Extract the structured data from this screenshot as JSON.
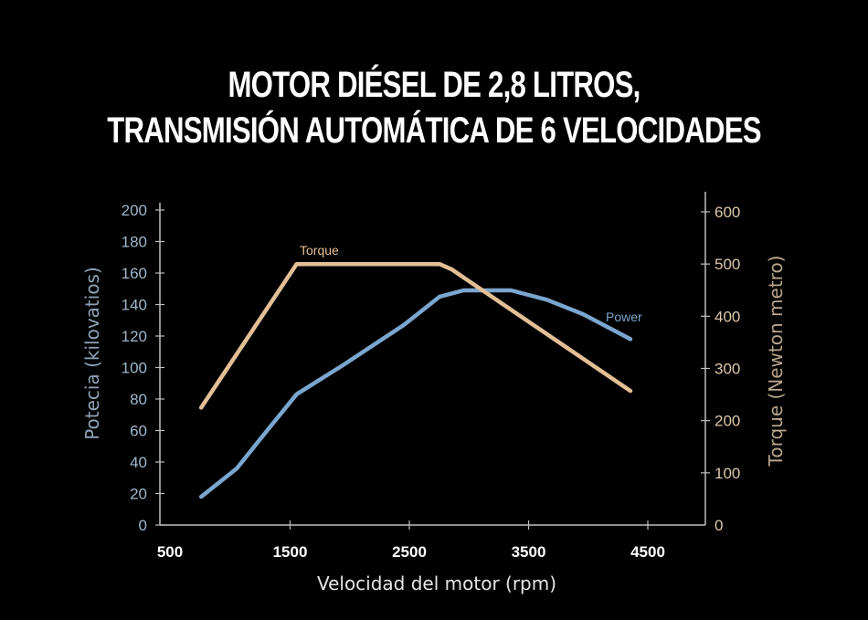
{
  "title": {
    "line1": "MOTOR DIÉSEL DE 2,8 LITROS,",
    "line2": "TRANSMISIÓN AUTOMÁTICA DE 6 VELOCIDADES"
  },
  "axes": {
    "xlabel": "Velocidad del motor (rpm)",
    "ylabel_left": "Potecia (kilovatios)",
    "ylabel_right": "Torque (Newton metro)",
    "xticks": [
      "500",
      "1500",
      "2500",
      "3500",
      "4500"
    ],
    "yticks_left": [
      "0",
      "20",
      "40",
      "60",
      "80",
      "100",
      "120",
      "140",
      "160",
      "180",
      "200"
    ],
    "yticks_right": [
      "0",
      "100",
      "200",
      "300",
      "400",
      "500",
      "600"
    ]
  },
  "colors": {
    "background": "#000000",
    "power": "#7aa6cf",
    "torque": "#e3bf95",
    "axis": "#bfbfbf"
  },
  "chart_data": {
    "type": "line",
    "title": "MOTOR DIÉSEL DE 2,8 LITROS, TRANSMISIÓN AUTOMÁTICA DE 6 VELOCIDADES",
    "xlabel": "Velocidad del motor (rpm)",
    "ylabel": "Potecia (kilovatios)",
    "ylabel_right": "Torque (Newton metro)",
    "xlim": [
      500,
      5000
    ],
    "ylim": [
      0,
      200
    ],
    "ylim_right": [
      0,
      600
    ],
    "xticks": [
      500,
      1500,
      2500,
      3500,
      4500
    ],
    "grid": false,
    "legend": "inline labels",
    "series": [
      {
        "name": "Power",
        "axis": "left",
        "unit": "kW",
        "x": [
          800,
          1100,
          1300,
          1600,
          2000,
          2500,
          2800,
          3000,
          3400,
          3700,
          4000,
          4400
        ],
        "values": [
          18,
          36,
          55,
          83,
          102,
          127,
          145,
          149,
          149,
          143,
          134,
          118
        ]
      },
      {
        "name": "Torque",
        "axis": "right",
        "unit": "Nm",
        "x": [
          800,
          1600,
          2800,
          2900,
          4400
        ],
        "values": [
          225,
          500,
          500,
          490,
          257
        ]
      }
    ]
  }
}
